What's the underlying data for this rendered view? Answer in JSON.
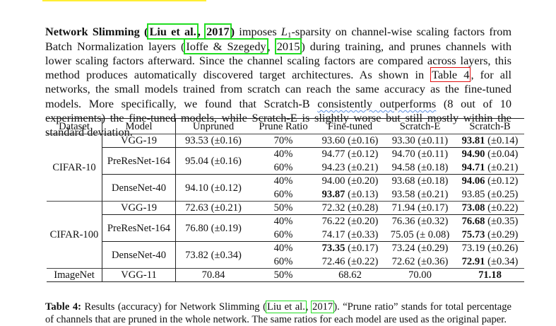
{
  "paragraph": {
    "title": "Network Slimming",
    "cite1_author": "Liu et al.",
    "cite1_year": "2017",
    "text1": " imposes ",
    "math_var": "L",
    "math_sub": "1",
    "text2": "-sparsity on channel-wise scaling factors from Batch Normalization layers (",
    "cite2_author": "Ioffe & Szegedy",
    "cite2_year": "2015",
    "text3": ") during training, and prunes channels with lower scaling factors afterward. Since the channel scaling factors are compared across layers, this method produces automatically discovered target architectures. As shown in ",
    "table_ref": "Table 4",
    "text4": ", for all networks, the small models trained from scratch can reach the same accuracy as the fine-tuned models. More specifically, we found that Scratch-B ",
    "squiggle_text": "consistently outperforms",
    "text5": " (8 out of 10 experiments) the fine-tuned models, while Scratch-E is slightly worse but still mostly within the standard deviation."
  },
  "table": {
    "headers": [
      "Dataset",
      "Model",
      "Unpruned",
      "Prune Ratio",
      "Fine-tuned",
      "Scratch-E",
      "Scratch-B"
    ],
    "groups": [
      {
        "dataset": "CIFAR-10",
        "models": [
          {
            "name": "VGG-19",
            "unpruned": "93.53 (±0.16)",
            "rows": [
              {
                "ratio": "70%",
                "ft_v": "",
                "ft": "93.60 (±0.16)",
                "se": "93.30 (±0.11)",
                "sb_v": "93.81",
                "sb": " (±0.14)"
              }
            ]
          },
          {
            "name": "PreResNet-164",
            "unpruned": "95.04 (±0.16)",
            "rows": [
              {
                "ratio": "40%",
                "ft_v": "",
                "ft": "94.77 (±0.12)",
                "se": "94.70 (±0.11)",
                "sb_v": "94.90",
                "sb": " (±0.04)"
              },
              {
                "ratio": "60%",
                "ft_v": "",
                "ft": "94.23 (±0.21)",
                "se": "94.58 (±0.18)",
                "sb_v": "94.71",
                "sb": " (±0.21)"
              }
            ]
          },
          {
            "name": "DenseNet-40",
            "unpruned": "94.10 (±0.12)",
            "rows": [
              {
                "ratio": "40%",
                "ft_v": "",
                "ft": "94.00 (±0.20)",
                "se": "93.68 (±0.18)",
                "sb_v": "94.06",
                "sb": " (±0.12)"
              },
              {
                "ratio": "60%",
                "ft_v": "93.87",
                "ft": " (±0.13)",
                "se": "93.58 (±0.21)",
                "sb_v": "",
                "sb": "93.85 (±0.25)"
              }
            ]
          }
        ]
      },
      {
        "dataset": "CIFAR-100",
        "models": [
          {
            "name": "VGG-19",
            "unpruned": "72.63 (±0.21)",
            "rows": [
              {
                "ratio": "50%",
                "ft_v": "",
                "ft": "72.32 (±0.28)",
                "se": "71.94 (±0.17)",
                "sb_v": "73.08",
                "sb": " (±0.22)"
              }
            ]
          },
          {
            "name": "PreResNet-164",
            "unpruned": "76.80 (±0.19)",
            "rows": [
              {
                "ratio": "40%",
                "ft_v": "",
                "ft": "76.22 (±0.20)",
                "se": "76.36 (±0.32)",
                "sb_v": "76.68",
                "sb": " (±0.35)"
              },
              {
                "ratio": "60%",
                "ft_v": "",
                "ft": "74.17 (±0.33)",
                "se": "75.05 (± 0.08)",
                "sb_v": "75.73",
                "sb": " (±0.29)"
              }
            ]
          },
          {
            "name": "DenseNet-40",
            "unpruned": "73.82 (±0.34)",
            "rows": [
              {
                "ratio": "40%",
                "ft_v": "73.35",
                "ft": " (±0.17)",
                "se": "73.24 (±0.29)",
                "sb_v": "",
                "sb": "73.19 (±0.26)"
              },
              {
                "ratio": "60%",
                "ft_v": "",
                "ft": "72.46 (±0.22)",
                "se": "72.62 (±0.36)",
                "sb_v": "72.91",
                "sb": " (±0.34)"
              }
            ]
          }
        ]
      },
      {
        "dataset": "ImageNet",
        "models": [
          {
            "name": "VGG-11",
            "unpruned": "70.84",
            "rows": [
              {
                "ratio": "50%",
                "ft_v": "",
                "ft": "68.62",
                "se": "70.00",
                "sb_v": "71.18",
                "sb": ""
              }
            ]
          }
        ]
      }
    ]
  },
  "caption": {
    "label": "Table 4:",
    "text1": " Results (accuracy) for Network Slimming (",
    "cite_author": "Liu et al.",
    "cite_year": "2017",
    "text2": "). “Prune ratio” stands for total percentage of channels that are pruned in the whole network. The same ratios for each model are used as the original paper."
  },
  "colors": {
    "citation_box": "#22dd22",
    "table_ref_box": "#e01010",
    "spellcheck_underline": "#5a8de0",
    "top_highlight": "#ffee33"
  }
}
